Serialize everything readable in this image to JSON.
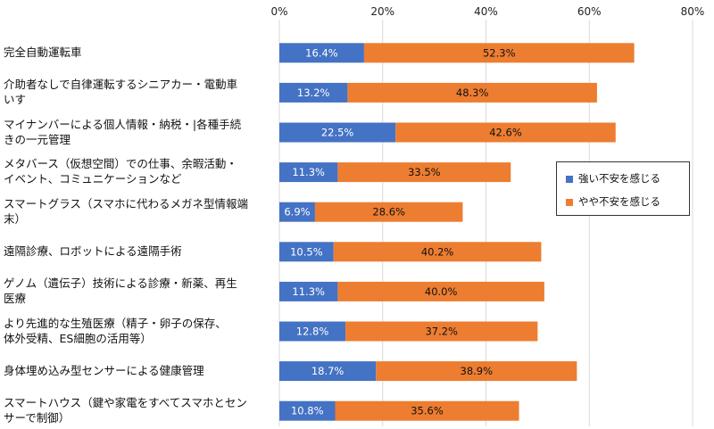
{
  "chart_data": {
    "type": "bar",
    "orientation": "horizontal",
    "stacked": true,
    "xlim": [
      0,
      80
    ],
    "x_ticks": [
      "0%",
      "20%",
      "40%",
      "60%",
      "80%"
    ],
    "grid": true,
    "legend_position": "right",
    "categories": [
      "完全自動運転車",
      "介助者なしで自律運転するシニアカー・電動車いす",
      "マイナンバーによる個人情報・納税・|各種手続きの一元管理",
      "メタバース（仮想空間）での仕事、余暇活動・イベント、コミュニケーションなど",
      "スマートグラス（スマホに代わるメガネ型情報端末）",
      "遠隔診療、ロボットによる遠隔手術",
      "ゲノム（遺伝子）技術による診療・新薬、再生医療",
      "より先進的な生殖医療（精子・卵子の保存、体外受精、ES細胞の活用等）",
      "身体埋め込み型センサーによる健康管理",
      "スマートハウス（鍵や家電をすべてスマホとセンサーで制御）"
    ],
    "category_lines": [
      [
        "完全自動運転車"
      ],
      [
        "介助者なしで自律運転するシニアカー・電動車",
        "いす"
      ],
      [
        "マイナンバーによる個人情報・納税・|各種手続",
        "きの一元管理"
      ],
      [
        "メタバース（仮想空間）での仕事、余暇活動・",
        "イベント、コミュニケーションなど"
      ],
      [
        "スマートグラス（スマホに代わるメガネ型情報端",
        "末）"
      ],
      [
        "遠隔診療、ロボットによる遠隔手術"
      ],
      [
        "ゲノム（遺伝子）技術による診療・新薬、再生",
        "医療"
      ],
      [
        "より先進的な生殖医療（精子・卵子の保存、",
        "体外受精、ES細胞の活用等）"
      ],
      [
        "身体埋め込み型センサーによる健康管理"
      ],
      [
        "スマートハウス（鍵や家電をすべてスマホとセン",
        "サーで制御）"
      ]
    ],
    "series": [
      {
        "name": "強い不安を感じる",
        "color": "#4472C4",
        "values": [
          16.4,
          13.2,
          22.5,
          11.3,
          6.9,
          10.5,
          11.3,
          12.8,
          18.7,
          10.8
        ],
        "labels": [
          "16.4%",
          "13.2%",
          "22.5%",
          "11.3%",
          "6.9%",
          "10.5%",
          "11.3%",
          "12.8%",
          "18.7%",
          "10.8%"
        ]
      },
      {
        "name": "やや不安を感じる",
        "color": "#ED7D31",
        "values": [
          52.3,
          48.3,
          42.6,
          33.5,
          28.6,
          40.2,
          40.0,
          37.2,
          38.9,
          35.6
        ],
        "labels": [
          "52.3%",
          "48.3%",
          "42.6%",
          "33.5%",
          "28.6%",
          "40.2%",
          "40.0%",
          "37.2%",
          "38.9%",
          "35.6%"
        ]
      }
    ]
  }
}
